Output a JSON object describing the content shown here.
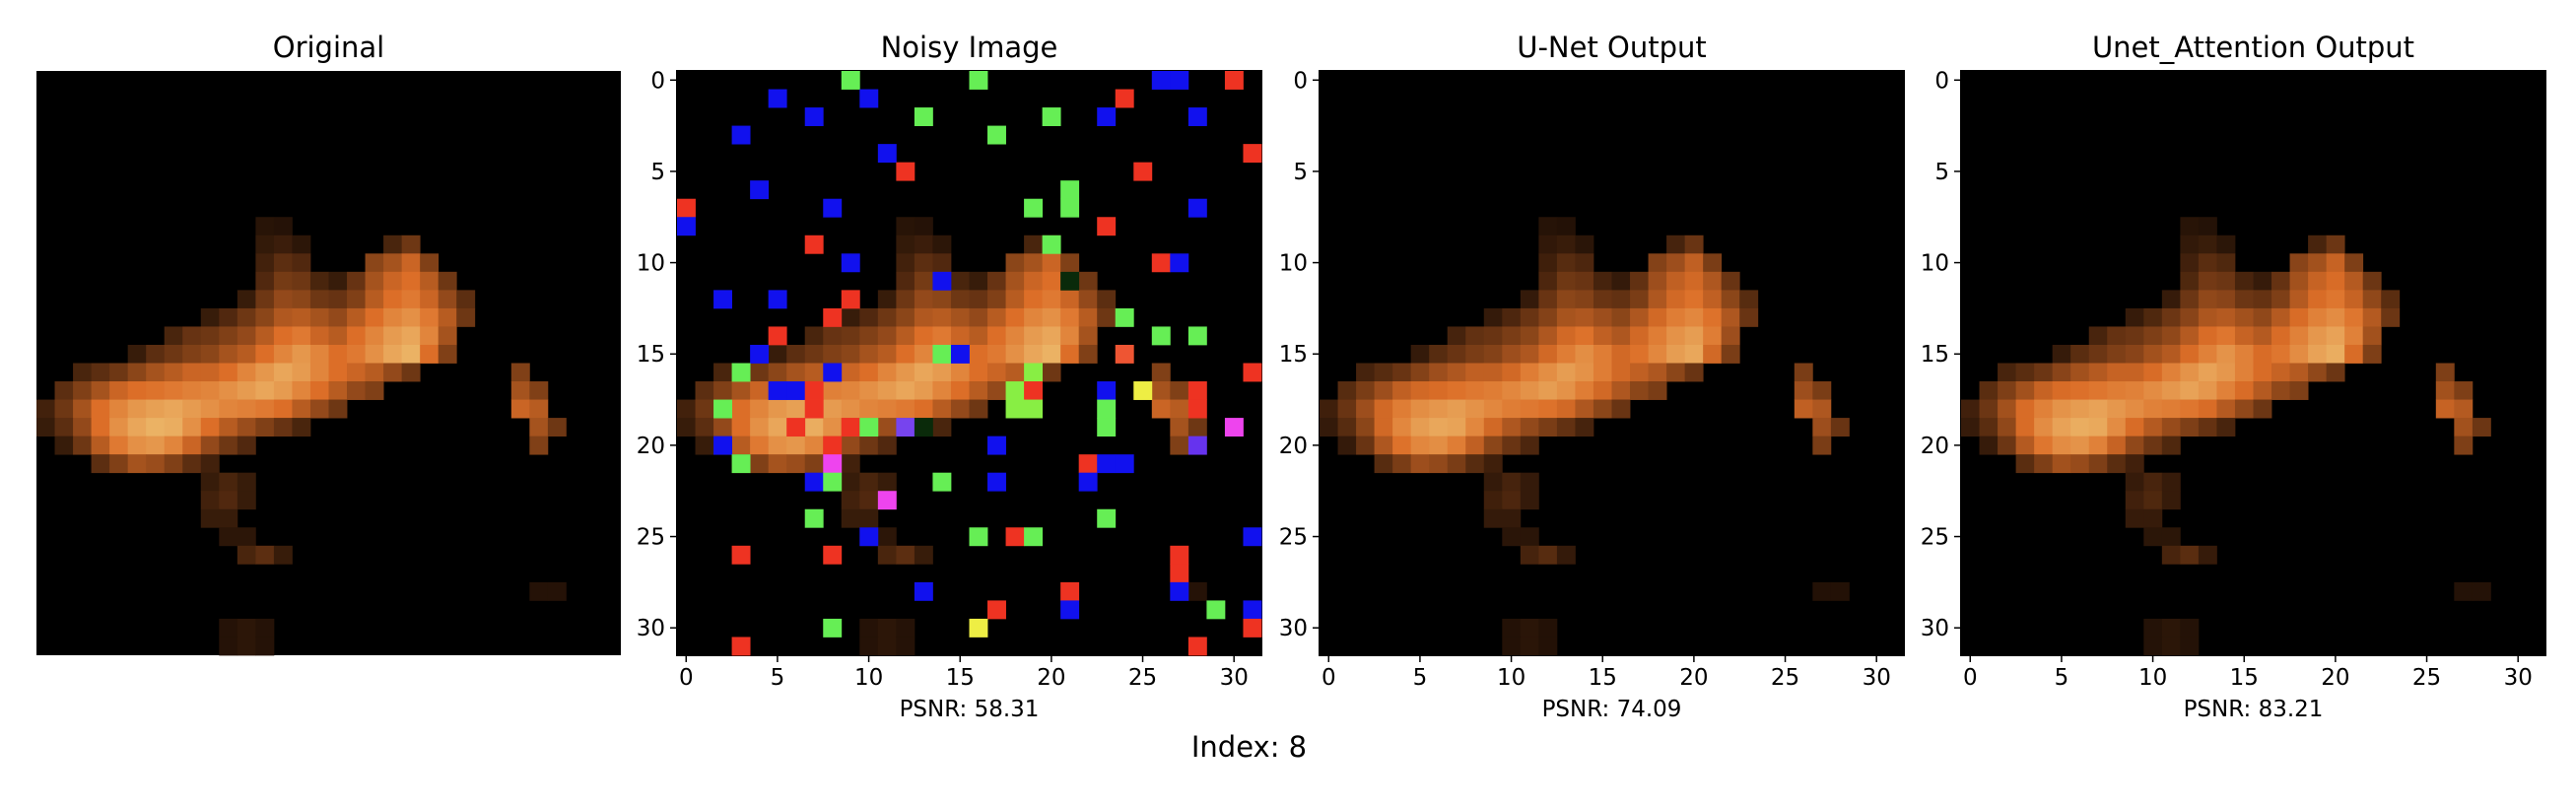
{
  "figure": {
    "caption": "Index: 8"
  },
  "chart_data": [
    {
      "type": "heatmap",
      "title": "Original",
      "image": "original",
      "grid": {
        "rows": 32,
        "cols": 32
      },
      "axes_visible": false,
      "xlim": [
        -0.5,
        31.5
      ],
      "ylim": [
        31.5,
        -0.5
      ],
      "xticks": [],
      "yticks": [],
      "annotation": ""
    },
    {
      "type": "heatmap",
      "title": "Noisy Image",
      "image": "noisy",
      "grid": {
        "rows": 32,
        "cols": 32
      },
      "axes_visible": true,
      "xlim": [
        -0.5,
        31.5
      ],
      "ylim": [
        31.5,
        -0.5
      ],
      "xticks": [
        0,
        5,
        10,
        15,
        20,
        25,
        30
      ],
      "yticks": [
        0,
        5,
        10,
        15,
        20,
        25,
        30
      ],
      "annotation": "PSNR: 58.31",
      "psnr": 58.31
    },
    {
      "type": "heatmap",
      "title": "U-Net Output",
      "image": "unet",
      "grid": {
        "rows": 32,
        "cols": 32
      },
      "axes_visible": true,
      "xlim": [
        -0.5,
        31.5
      ],
      "ylim": [
        31.5,
        -0.5
      ],
      "xticks": [
        0,
        5,
        10,
        15,
        20,
        25,
        30
      ],
      "yticks": [
        0,
        5,
        10,
        15,
        20,
        25,
        30
      ],
      "annotation": "PSNR: 74.09",
      "psnr": 74.09
    },
    {
      "type": "heatmap",
      "title": "Unet_Attention Output",
      "image": "attention",
      "grid": {
        "rows": 32,
        "cols": 32
      },
      "axes_visible": true,
      "xlim": [
        -0.5,
        31.5
      ],
      "ylim": [
        31.5,
        -0.5
      ],
      "xticks": [
        0,
        5,
        10,
        15,
        20,
        25,
        30
      ],
      "yticks": [
        0,
        5,
        10,
        15,
        20,
        25,
        30
      ],
      "annotation": "PSNR: 83.21",
      "psnr": 83.21
    }
  ],
  "images": {
    "base": [
      [
        8,
        12,
        0.11
      ],
      [
        8,
        13,
        0.1
      ],
      [
        9,
        12,
        0.14
      ],
      [
        9,
        13,
        0.16
      ],
      [
        9,
        14,
        0.12
      ],
      [
        9,
        19,
        0.2
      ],
      [
        9,
        20,
        0.3
      ],
      [
        10,
        12,
        0.18
      ],
      [
        10,
        13,
        0.25
      ],
      [
        10,
        14,
        0.22
      ],
      [
        10,
        18,
        0.38
      ],
      [
        10,
        19,
        0.45
      ],
      [
        10,
        20,
        0.55
      ],
      [
        10,
        21,
        0.35
      ],
      [
        11,
        12,
        0.22
      ],
      [
        11,
        13,
        0.32
      ],
      [
        11,
        14,
        0.3
      ],
      [
        11,
        15,
        0.2
      ],
      [
        11,
        16,
        0.15
      ],
      [
        11,
        17,
        0.28
      ],
      [
        11,
        18,
        0.45
      ],
      [
        11,
        19,
        0.55
      ],
      [
        11,
        20,
        0.6
      ],
      [
        11,
        21,
        0.5
      ],
      [
        11,
        22,
        0.3
      ],
      [
        12,
        11,
        0.15
      ],
      [
        12,
        12,
        0.3
      ],
      [
        12,
        13,
        0.4
      ],
      [
        12,
        14,
        0.38
      ],
      [
        12,
        15,
        0.3
      ],
      [
        12,
        16,
        0.28
      ],
      [
        12,
        17,
        0.35
      ],
      [
        12,
        18,
        0.5
      ],
      [
        12,
        19,
        0.6
      ],
      [
        12,
        20,
        0.65
      ],
      [
        12,
        21,
        0.55
      ],
      [
        12,
        22,
        0.4
      ],
      [
        12,
        23,
        0.25
      ],
      [
        13,
        9,
        0.15
      ],
      [
        13,
        10,
        0.22
      ],
      [
        13,
        11,
        0.3
      ],
      [
        13,
        12,
        0.38
      ],
      [
        13,
        13,
        0.48
      ],
      [
        13,
        14,
        0.5
      ],
      [
        13,
        15,
        0.45
      ],
      [
        13,
        16,
        0.4
      ],
      [
        13,
        17,
        0.5
      ],
      [
        13,
        18,
        0.6
      ],
      [
        13,
        19,
        0.7
      ],
      [
        13,
        20,
        0.75
      ],
      [
        13,
        21,
        0.65
      ],
      [
        13,
        22,
        0.5
      ],
      [
        13,
        23,
        0.3
      ],
      [
        14,
        7,
        0.2
      ],
      [
        14,
        8,
        0.28
      ],
      [
        14,
        9,
        0.3
      ],
      [
        14,
        10,
        0.35
      ],
      [
        14,
        11,
        0.4
      ],
      [
        14,
        12,
        0.5
      ],
      [
        14,
        13,
        0.6
      ],
      [
        14,
        14,
        0.65
      ],
      [
        14,
        15,
        0.55
      ],
      [
        14,
        16,
        0.5
      ],
      [
        14,
        17,
        0.6
      ],
      [
        14,
        18,
        0.7
      ],
      [
        14,
        19,
        0.8
      ],
      [
        14,
        20,
        0.85
      ],
      [
        14,
        21,
        0.7
      ],
      [
        14,
        22,
        0.45
      ],
      [
        15,
        5,
        0.15
      ],
      [
        15,
        6,
        0.25
      ],
      [
        15,
        7,
        0.3
      ],
      [
        15,
        8,
        0.35
      ],
      [
        15,
        9,
        0.38
      ],
      [
        15,
        10,
        0.45
      ],
      [
        15,
        11,
        0.5
      ],
      [
        15,
        12,
        0.6
      ],
      [
        15,
        13,
        0.7
      ],
      [
        15,
        14,
        0.78
      ],
      [
        15,
        15,
        0.7
      ],
      [
        15,
        16,
        0.6
      ],
      [
        15,
        17,
        0.65
      ],
      [
        15,
        18,
        0.75
      ],
      [
        15,
        19,
        0.85
      ],
      [
        15,
        20,
        0.9
      ],
      [
        15,
        21,
        0.6
      ],
      [
        15,
        22,
        0.35
      ],
      [
        16,
        2,
        0.2
      ],
      [
        16,
        3,
        0.25
      ],
      [
        16,
        4,
        0.3
      ],
      [
        16,
        5,
        0.38
      ],
      [
        16,
        6,
        0.45
      ],
      [
        16,
        7,
        0.5
      ],
      [
        16,
        8,
        0.55
      ],
      [
        16,
        9,
        0.55
      ],
      [
        16,
        10,
        0.6
      ],
      [
        16,
        11,
        0.7
      ],
      [
        16,
        12,
        0.78
      ],
      [
        16,
        13,
        0.85
      ],
      [
        16,
        14,
        0.8
      ],
      [
        16,
        15,
        0.7
      ],
      [
        16,
        16,
        0.6
      ],
      [
        16,
        17,
        0.55
      ],
      [
        16,
        18,
        0.5
      ],
      [
        16,
        19,
        0.4
      ],
      [
        16,
        20,
        0.3
      ],
      [
        16,
        26,
        0.35
      ],
      [
        17,
        1,
        0.25
      ],
      [
        17,
        2,
        0.35
      ],
      [
        17,
        3,
        0.45
      ],
      [
        17,
        4,
        0.55
      ],
      [
        17,
        5,
        0.6
      ],
      [
        17,
        6,
        0.62
      ],
      [
        17,
        7,
        0.65
      ],
      [
        17,
        8,
        0.68
      ],
      [
        17,
        9,
        0.7
      ],
      [
        17,
        10,
        0.75
      ],
      [
        17,
        11,
        0.8
      ],
      [
        17,
        12,
        0.85
      ],
      [
        17,
        13,
        0.8
      ],
      [
        17,
        14,
        0.7
      ],
      [
        17,
        15,
        0.6
      ],
      [
        17,
        16,
        0.5
      ],
      [
        17,
        17,
        0.4
      ],
      [
        17,
        18,
        0.35
      ],
      [
        17,
        26,
        0.45
      ],
      [
        17,
        27,
        0.35
      ],
      [
        18,
        0,
        0.18
      ],
      [
        18,
        1,
        0.3
      ],
      [
        18,
        2,
        0.45
      ],
      [
        18,
        3,
        0.6
      ],
      [
        18,
        4,
        0.7
      ],
      [
        18,
        5,
        0.78
      ],
      [
        18,
        6,
        0.82
      ],
      [
        18,
        7,
        0.85
      ],
      [
        18,
        8,
        0.8
      ],
      [
        18,
        9,
        0.75
      ],
      [
        18,
        10,
        0.7
      ],
      [
        18,
        11,
        0.68
      ],
      [
        18,
        12,
        0.65
      ],
      [
        18,
        13,
        0.6
      ],
      [
        18,
        14,
        0.5
      ],
      [
        18,
        15,
        0.4
      ],
      [
        18,
        16,
        0.3
      ],
      [
        18,
        26,
        0.55
      ],
      [
        18,
        27,
        0.5
      ],
      [
        19,
        0,
        0.15
      ],
      [
        19,
        1,
        0.25
      ],
      [
        19,
        2,
        0.4
      ],
      [
        19,
        3,
        0.6
      ],
      [
        19,
        4,
        0.75
      ],
      [
        19,
        5,
        0.85
      ],
      [
        19,
        6,
        0.9
      ],
      [
        19,
        7,
        0.88
      ],
      [
        19,
        8,
        0.75
      ],
      [
        19,
        9,
        0.6
      ],
      [
        19,
        10,
        0.5
      ],
      [
        19,
        11,
        0.42
      ],
      [
        19,
        12,
        0.35
      ],
      [
        19,
        13,
        0.28
      ],
      [
        19,
        14,
        0.2
      ],
      [
        19,
        27,
        0.45
      ],
      [
        19,
        28,
        0.3
      ],
      [
        20,
        1,
        0.15
      ],
      [
        20,
        2,
        0.3
      ],
      [
        20,
        3,
        0.5
      ],
      [
        20,
        4,
        0.65
      ],
      [
        20,
        5,
        0.75
      ],
      [
        20,
        6,
        0.78
      ],
      [
        20,
        7,
        0.7
      ],
      [
        20,
        8,
        0.55
      ],
      [
        20,
        9,
        0.4
      ],
      [
        20,
        10,
        0.3
      ],
      [
        20,
        11,
        0.22
      ],
      [
        20,
        27,
        0.35
      ],
      [
        21,
        3,
        0.25
      ],
      [
        21,
        4,
        0.35
      ],
      [
        21,
        5,
        0.45
      ],
      [
        21,
        6,
        0.42
      ],
      [
        21,
        7,
        0.35
      ],
      [
        21,
        8,
        0.25
      ],
      [
        21,
        9,
        0.18
      ],
      [
        22,
        9,
        0.15
      ],
      [
        22,
        10,
        0.2
      ],
      [
        22,
        11,
        0.15
      ],
      [
        23,
        9,
        0.18
      ],
      [
        23,
        10,
        0.22
      ],
      [
        23,
        11,
        0.15
      ],
      [
        24,
        9,
        0.15
      ],
      [
        24,
        10,
        0.15
      ],
      [
        25,
        10,
        0.12
      ],
      [
        25,
        11,
        0.12
      ],
      [
        26,
        11,
        0.2
      ],
      [
        26,
        12,
        0.25
      ],
      [
        26,
        13,
        0.15
      ],
      [
        28,
        27,
        0.1
      ],
      [
        28,
        28,
        0.1
      ],
      [
        30,
        10,
        0.1
      ],
      [
        30,
        11,
        0.12
      ],
      [
        30,
        12,
        0.1
      ],
      [
        31,
        10,
        0.1
      ],
      [
        31,
        11,
        0.12
      ],
      [
        31,
        12,
        0.1
      ]
    ],
    "noise": [
      [
        0,
        9,
        "#66ee55"
      ],
      [
        0,
        16,
        "#66ee55"
      ],
      [
        0,
        26,
        "#1111ee"
      ],
      [
        0,
        27,
        "#1111ee"
      ],
      [
        0,
        30,
        "#ee3322"
      ],
      [
        1,
        5,
        "#1111ee"
      ],
      [
        1,
        10,
        "#1111ee"
      ],
      [
        1,
        24,
        "#ee3322"
      ],
      [
        2,
        7,
        "#1111ee"
      ],
      [
        2,
        13,
        "#66ee55"
      ],
      [
        2,
        20,
        "#66ee55"
      ],
      [
        2,
        23,
        "#1111ee"
      ],
      [
        2,
        28,
        "#1111ee"
      ],
      [
        3,
        3,
        "#1111ee"
      ],
      [
        3,
        17,
        "#66ee55"
      ],
      [
        4,
        11,
        "#1111ee"
      ],
      [
        4,
        31,
        "#ee3322"
      ],
      [
        5,
        12,
        "#ee3322"
      ],
      [
        5,
        25,
        "#ee3322"
      ],
      [
        6,
        4,
        "#1111ee"
      ],
      [
        6,
        21,
        "#66ee55"
      ],
      [
        7,
        0,
        "#ee3322"
      ],
      [
        7,
        8,
        "#1111ee"
      ],
      [
        7,
        19,
        "#66ee55"
      ],
      [
        7,
        21,
        "#66ee55"
      ],
      [
        7,
        28,
        "#1111ee"
      ],
      [
        8,
        0,
        "#1111ee"
      ],
      [
        8,
        23,
        "#ee3322"
      ],
      [
        9,
        7,
        "#ee3322"
      ],
      [
        9,
        20,
        "#66ee55"
      ],
      [
        10,
        9,
        "#1111ee"
      ],
      [
        10,
        26,
        "#ee3322"
      ],
      [
        10,
        27,
        "#1111ee"
      ],
      [
        11,
        14,
        "#1111ee"
      ],
      [
        11,
        21,
        "#0a2a0a"
      ],
      [
        12,
        2,
        "#1111ee"
      ],
      [
        12,
        5,
        "#1111ee"
      ],
      [
        12,
        9,
        "#ee3322"
      ],
      [
        13,
        8,
        "#ee3322"
      ],
      [
        13,
        24,
        "#66ee55"
      ],
      [
        14,
        5,
        "#ee3322"
      ],
      [
        14,
        26,
        "#66ee55"
      ],
      [
        14,
        28,
        "#66ee55"
      ],
      [
        15,
        4,
        "#1111ee"
      ],
      [
        15,
        14,
        "#66ee55"
      ],
      [
        15,
        15,
        "#1111ee"
      ],
      [
        15,
        24,
        "#ee5533"
      ],
      [
        16,
        3,
        "#66ee55"
      ],
      [
        16,
        8,
        "#1111ee"
      ],
      [
        16,
        19,
        "#88ee44"
      ],
      [
        16,
        31,
        "#ee3322"
      ],
      [
        17,
        5,
        "#1111ee"
      ],
      [
        17,
        6,
        "#1111ee"
      ],
      [
        17,
        7,
        "#ee3322"
      ],
      [
        17,
        18,
        "#88ee44"
      ],
      [
        17,
        19,
        "#ee3322"
      ],
      [
        17,
        23,
        "#1111ee"
      ],
      [
        17,
        25,
        "#eeee44"
      ],
      [
        17,
        28,
        "#ee3322"
      ],
      [
        18,
        2,
        "#66ee55"
      ],
      [
        18,
        7,
        "#ee3322"
      ],
      [
        18,
        18,
        "#88ee44"
      ],
      [
        18,
        19,
        "#88ee44"
      ],
      [
        18,
        23,
        "#66ee55"
      ],
      [
        18,
        28,
        "#ee3322"
      ],
      [
        19,
        6,
        "#ee3322"
      ],
      [
        19,
        9,
        "#ee3322"
      ],
      [
        19,
        10,
        "#66ee55"
      ],
      [
        19,
        12,
        "#7744ee"
      ],
      [
        19,
        13,
        "#0a2a0a"
      ],
      [
        19,
        23,
        "#66ee55"
      ],
      [
        19,
        30,
        "#ee44ee"
      ],
      [
        20,
        2,
        "#1111ee"
      ],
      [
        20,
        8,
        "#ee3322"
      ],
      [
        20,
        17,
        "#1111ee"
      ],
      [
        20,
        28,
        "#6633ee"
      ],
      [
        21,
        3,
        "#66ee55"
      ],
      [
        21,
        8,
        "#ee44ee"
      ],
      [
        21,
        22,
        "#ee3322"
      ],
      [
        21,
        23,
        "#1111ee"
      ],
      [
        21,
        24,
        "#1111ee"
      ],
      [
        22,
        7,
        "#1111ee"
      ],
      [
        22,
        8,
        "#66ee55"
      ],
      [
        22,
        14,
        "#66ee55"
      ],
      [
        22,
        17,
        "#1111ee"
      ],
      [
        22,
        22,
        "#1111ee"
      ],
      [
        23,
        11,
        "#ee44ee"
      ],
      [
        24,
        7,
        "#66ee55"
      ],
      [
        24,
        23,
        "#66ee55"
      ],
      [
        25,
        10,
        "#1111ee"
      ],
      [
        25,
        16,
        "#66ee55"
      ],
      [
        25,
        18,
        "#ee3322"
      ],
      [
        25,
        19,
        "#66ee55"
      ],
      [
        25,
        31,
        "#1111ee"
      ],
      [
        26,
        3,
        "#ee3322"
      ],
      [
        26,
        8,
        "#ee3322"
      ],
      [
        26,
        27,
        "#ee3322"
      ],
      [
        27,
        27,
        "#ee3322"
      ],
      [
        28,
        13,
        "#1111ee"
      ],
      [
        28,
        21,
        "#ee3322"
      ],
      [
        28,
        27,
        "#1111ee"
      ],
      [
        29,
        17,
        "#ee3322"
      ],
      [
        29,
        21,
        "#1111ee"
      ],
      [
        29,
        29,
        "#66ee55"
      ],
      [
        29,
        31,
        "#1111ee"
      ],
      [
        30,
        8,
        "#66ee55"
      ],
      [
        30,
        16,
        "#eeee44"
      ],
      [
        30,
        31,
        "#ee3322"
      ],
      [
        31,
        3,
        "#ee3322"
      ],
      [
        31,
        28,
        "#ee3322"
      ]
    ],
    "palette": {
      "dark": [
        20,
        8,
        0
      ],
      "mid": [
        220,
        110,
        40
      ],
      "light": [
        240,
        200,
        120
      ]
    }
  }
}
